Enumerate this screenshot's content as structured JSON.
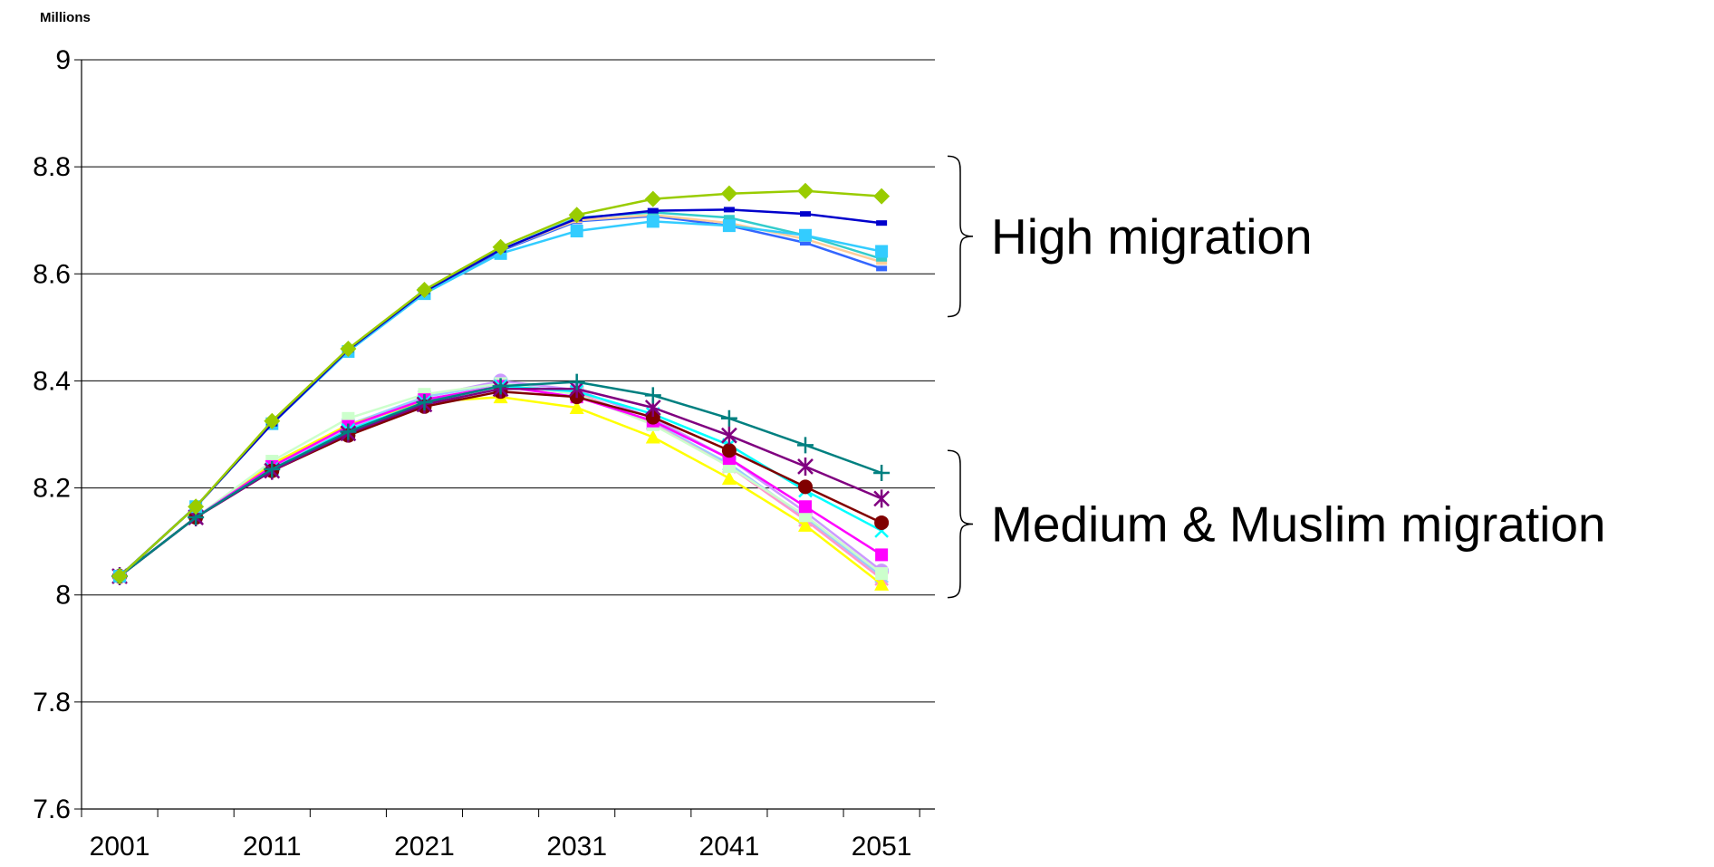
{
  "chart_data": {
    "type": "line",
    "ylabel": "Millions",
    "ylim": [
      7.6,
      9
    ],
    "yticks": [
      "9",
      "8.8",
      "8.6",
      "8.4",
      "8.2",
      "8",
      "7.8",
      "7.6"
    ],
    "xtick_labels": [
      "2001",
      "2011",
      "2021",
      "2031",
      "2041",
      "2051"
    ],
    "x": [
      2001,
      2006,
      2011,
      2016,
      2021,
      2026,
      2031,
      2036,
      2041,
      2046,
      2051
    ],
    "grid": "horizontal",
    "legend": "none",
    "annotations": [
      {
        "text": "High migration",
        "range": [
          8.52,
          8.82
        ]
      },
      {
        "text": "Medium & Muslim migration",
        "range": [
          7.995,
          8.27
        ]
      }
    ],
    "series": [
      {
        "color": "#99cc00",
        "marker": "diamond",
        "values": [
          8.035,
          8.165,
          8.325,
          8.46,
          8.57,
          8.65,
          8.71,
          8.74,
          8.75,
          8.755,
          8.745
        ]
      },
      {
        "color": "#0000cc",
        "marker": "dash",
        "values": [
          8.035,
          8.165,
          8.32,
          8.458,
          8.567,
          8.645,
          8.703,
          8.718,
          8.72,
          8.712,
          8.695
        ]
      },
      {
        "color": "#33ccff",
        "marker": "square",
        "values": [
          8.035,
          8.165,
          8.32,
          8.455,
          8.563,
          8.638,
          8.68,
          8.698,
          8.69,
          8.672,
          8.642
        ]
      },
      {
        "color": "#33cccc",
        "marker": "dash",
        "values": [
          8.035,
          8.165,
          8.32,
          8.457,
          8.566,
          8.645,
          8.705,
          8.715,
          8.705,
          8.672,
          8.628
        ]
      },
      {
        "color": "#ffcc99",
        "marker": "dash",
        "values": [
          8.035,
          8.165,
          8.32,
          8.457,
          8.565,
          8.645,
          8.7,
          8.71,
          8.695,
          8.665,
          8.622
        ]
      },
      {
        "color": "#3366ff",
        "marker": "dash",
        "values": [
          8.035,
          8.165,
          8.32,
          8.456,
          8.565,
          8.643,
          8.698,
          8.708,
          8.69,
          8.658,
          8.61
        ]
      },
      {
        "color": "#008080",
        "marker": "plus",
        "values": [
          8.035,
          8.145,
          8.235,
          8.305,
          8.36,
          8.39,
          8.398,
          8.373,
          8.33,
          8.28,
          8.228
        ]
      },
      {
        "color": "#800080",
        "marker": "star",
        "values": [
          8.035,
          8.145,
          8.232,
          8.302,
          8.356,
          8.385,
          8.385,
          8.35,
          8.298,
          8.24,
          8.18
        ]
      },
      {
        "color": "#800000",
        "marker": "circle",
        "values": [
          8.035,
          8.145,
          8.232,
          8.298,
          8.352,
          8.38,
          8.37,
          8.332,
          8.27,
          8.202,
          8.135
        ]
      },
      {
        "color": "#00ffff",
        "marker": "x",
        "values": [
          8.035,
          8.145,
          8.235,
          8.308,
          8.36,
          8.39,
          8.38,
          8.338,
          8.28,
          8.195,
          8.12
        ]
      },
      {
        "color": "#ff00ff",
        "marker": "square",
        "values": [
          8.035,
          8.145,
          8.24,
          8.315,
          8.365,
          8.39,
          8.37,
          8.325,
          8.255,
          8.165,
          8.075
        ]
      },
      {
        "color": "#ccffcc",
        "marker": "square",
        "values": [
          8.035,
          8.145,
          8.25,
          8.33,
          8.375,
          8.395,
          8.375,
          8.318,
          8.24,
          8.148,
          8.04
        ]
      },
      {
        "color": "#ffff00",
        "marker": "triangle",
        "values": [
          8.035,
          8.145,
          8.245,
          8.318,
          8.36,
          8.37,
          8.35,
          8.295,
          8.218,
          8.13,
          8.02
        ]
      },
      {
        "color": "#ff99cc",
        "marker": "x",
        "values": [
          8.035,
          8.145,
          8.24,
          8.315,
          8.365,
          8.39,
          8.378,
          8.32,
          8.24,
          8.14,
          8.03
        ]
      },
      {
        "color": "#99ccff",
        "marker": "x",
        "values": [
          8.035,
          8.145,
          8.24,
          8.318,
          8.37,
          8.395,
          8.378,
          8.322,
          8.245,
          8.145,
          8.035
        ]
      },
      {
        "color": "#cc99ff",
        "marker": "circle",
        "values": [
          8.035,
          8.145,
          8.235,
          8.31,
          8.37,
          8.4,
          8.383,
          8.33,
          8.255,
          8.155,
          8.045
        ]
      }
    ]
  }
}
